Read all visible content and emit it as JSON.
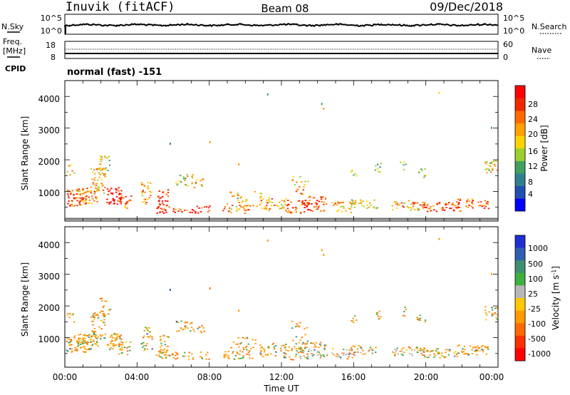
{
  "header": {
    "station": "Inuvik (fitACF)",
    "beam": "Beam 08",
    "date": "09/Dec/2018"
  },
  "nsky_panel": {
    "left_label": "N.Sky",
    "right_label": "N.Search",
    "left_ticks": [
      "10^5",
      "10^0"
    ],
    "right_ticks": [
      "10^5",
      "10^0"
    ]
  },
  "freq_panel": {
    "left_label_1": "Freq.",
    "left_label_2": "[MHz]",
    "right_label": "Nave",
    "left_ticks": [
      "18",
      "8"
    ],
    "right_ticks": [
      "60",
      "0"
    ],
    "cpid_label": "CPID",
    "cpid_text": "normal (fast) -151"
  },
  "chart_data": [
    {
      "type": "heatmap",
      "title": "",
      "ylabel": "Slant Range [km]",
      "xlabel": "",
      "y_ticks": [
        "1000",
        "2000",
        "3000",
        "4000"
      ],
      "ylim": [
        180,
        4500
      ],
      "colorbar": {
        "label": "Power [dB]",
        "ticks": [
          "4",
          "8",
          "12",
          "16",
          "20",
          "24",
          "28"
        ],
        "range": [
          0,
          30
        ],
        "colors": [
          "#0000ff",
          "#1f4faf",
          "#2f7f8f",
          "#3fa060",
          "#9bcf2c",
          "#ffd400",
          "#ffa000",
          "#ff6a00",
          "#f02800",
          "#ff0000"
        ]
      }
    },
    {
      "type": "heatmap",
      "title": "",
      "ylabel": "Slant Range [km]",
      "xlabel": "Time UT",
      "x_ticks": [
        "00:00",
        "04:00",
        "08:00",
        "12:00",
        "16:00",
        "20:00",
        "00:00"
      ],
      "y_ticks": [
        "1000",
        "2000",
        "3000",
        "4000"
      ],
      "ylim": [
        180,
        4500
      ],
      "colorbar": {
        "label": "Velocity [m s^-1]",
        "ticks": [
          "1000",
          "500",
          "100",
          "25",
          "-25",
          "-100",
          "-500",
          "-1000"
        ],
        "colors": [
          "#1f2fd0",
          "#2f5fb0",
          "#3f8f70",
          "#3fb040",
          "#b8b8b8",
          "#ffc800",
          "#ff9a00",
          "#ff6a00",
          "#ff3000",
          "#ff0000"
        ]
      }
    }
  ]
}
